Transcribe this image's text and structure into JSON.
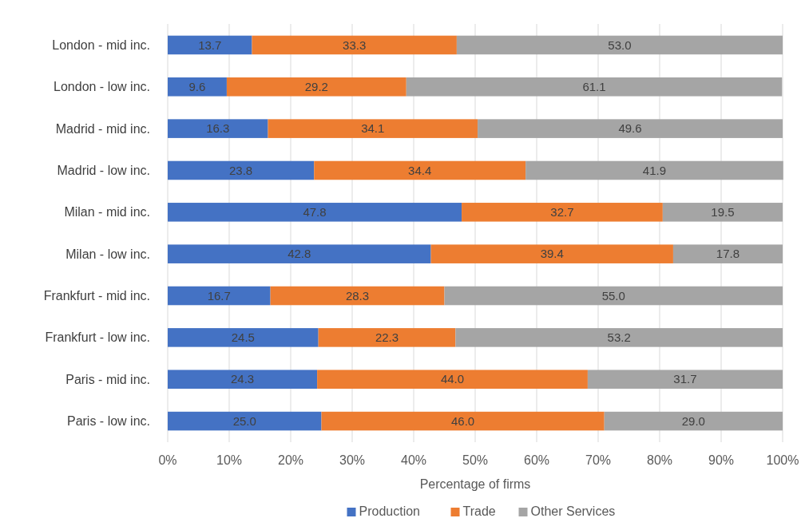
{
  "chart_data": {
    "type": "bar",
    "orientation": "horizontal",
    "stacked": true,
    "xlabel": "Percentage of firms",
    "categories": [
      "London - mid inc.",
      "London - low inc.",
      "Madrid - mid inc.",
      "Madrid - low inc.",
      "Milan - mid inc.",
      "Milan - low inc.",
      "Frankfurt - mid inc.",
      "Frankfurt - low inc.",
      "Paris - mid inc.",
      "Paris - low inc."
    ],
    "series": [
      {
        "name": "Production",
        "color": "#4472c4",
        "values": [
          13.7,
          9.6,
          16.3,
          23.8,
          47.8,
          42.8,
          16.7,
          24.5,
          24.3,
          25.0
        ],
        "value_labels": [
          "13.7",
          "9.6",
          "16.3",
          "23.8",
          "47.8",
          "42.8",
          "16.7",
          "24.5",
          "24.3",
          "25.0"
        ]
      },
      {
        "name": "Trade",
        "color": "#ed7d31",
        "values": [
          33.3,
          29.2,
          34.1,
          34.4,
          32.7,
          39.4,
          28.3,
          22.3,
          44.0,
          46.0
        ],
        "value_labels": [
          "33.3",
          "29.2",
          "34.1",
          "34.4",
          "32.7",
          "39.4",
          "28.3",
          "22.3",
          "44.0",
          "46.0"
        ]
      },
      {
        "name": "Other Services",
        "color": "#a5a5a5",
        "values": [
          53.0,
          61.1,
          49.6,
          41.9,
          19.5,
          17.8,
          55.0,
          53.2,
          31.7,
          29.0
        ],
        "value_labels": [
          "53.0",
          "61.1",
          "49.6",
          "41.9",
          "19.5",
          "17.8",
          "55.0",
          "53.2",
          "31.7",
          "29.0"
        ]
      }
    ],
    "xlim": [
      0,
      100
    ],
    "xticks": [
      {
        "value": 0,
        "label": "0%"
      },
      {
        "value": 10,
        "label": "10%"
      },
      {
        "value": 20,
        "label": "20%"
      },
      {
        "value": 30,
        "label": "30%"
      },
      {
        "value": 40,
        "label": "40%"
      },
      {
        "value": 50,
        "label": "50%"
      },
      {
        "value": 60,
        "label": "60%"
      },
      {
        "value": 70,
        "label": "70%"
      },
      {
        "value": 80,
        "label": "80%"
      },
      {
        "value": 90,
        "label": "90%"
      },
      {
        "value": 100,
        "label": "100%"
      }
    ],
    "grid": "x",
    "legend": "bottom"
  }
}
